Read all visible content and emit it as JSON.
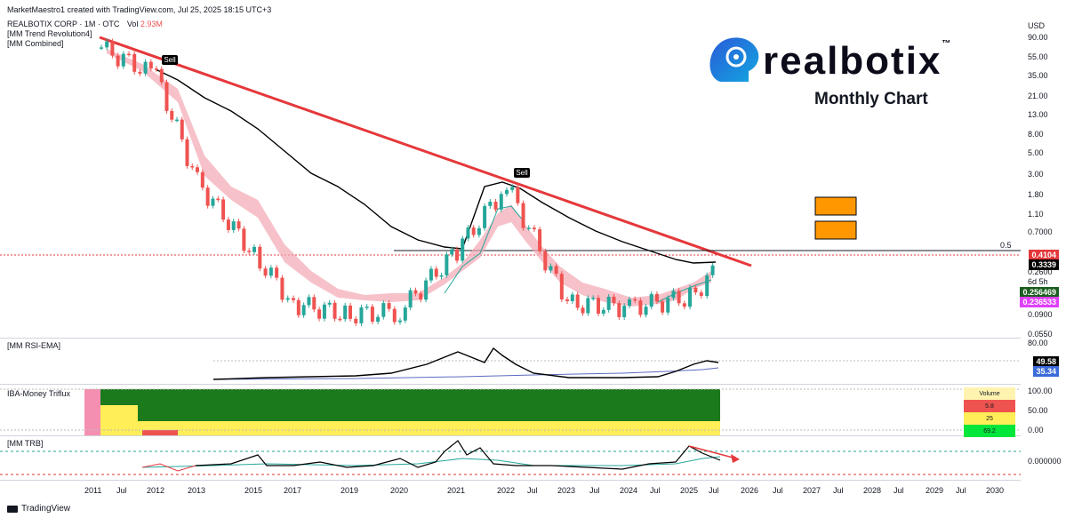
{
  "header": {
    "creator": "MarketMaestro1 created with TradingView.com, Jul 25, 2025 18:15 UTC+3",
    "symbol": "REALBOTIX CORP · 1M · OTC",
    "vol_label": "Vol",
    "vol_value": "2.93M",
    "indicator1": "[MM Trend Revolution4]",
    "indicator2": "[MM Combined]"
  },
  "logo": {
    "text": "realbotix",
    "tm": "™",
    "subtitle": "Monthly Chart"
  },
  "signals": [
    "Sell",
    "Sell"
  ],
  "price_axis": {
    "currency": "USD",
    "ticks": [
      "90.00",
      "55.00",
      "35.00",
      "21.00",
      "13.00",
      "8.00",
      "5.00",
      "3.00",
      "1.80",
      "1.10",
      "0.7000",
      "0.2600",
      "0.0900",
      "0.0550"
    ],
    "fib_label": "0.5",
    "tags": {
      "price1": "0.4104",
      "price2": "0.3339",
      "time": "6d 5h",
      "price3": "0.256469",
      "price4": "0.236533"
    }
  },
  "rsi_pane": {
    "title": "[MM RSI-EMA]",
    "axis_top": "80.00",
    "tags": [
      "49.58",
      "35.34"
    ]
  },
  "money_pane": {
    "title": "IBA-Money Triflux",
    "axis": [
      "100.00",
      "50.00",
      "0.00"
    ],
    "table": [
      {
        "label": "Volume",
        "value": "",
        "color": "#fff3b0"
      },
      {
        "label": "5.8",
        "value": "",
        "color": "#ef5350"
      },
      {
        "label": "25",
        "value": "",
        "color": "#ffee58"
      },
      {
        "label": "69.2",
        "value": "",
        "color": "#00e63a"
      }
    ]
  },
  "trb_pane": {
    "title": "[MM TRB]",
    "axis": "0.000000"
  },
  "time_axis": [
    "2011",
    "Jul",
    "2012",
    "2013",
    "2015",
    "2017",
    "2019",
    "2020",
    "2021",
    "2022",
    "Jul",
    "2023",
    "Jul",
    "2024",
    "Jul",
    "2025",
    "Jul",
    "2026",
    "Jul",
    "2027",
    "Jul",
    "2028",
    "Jul",
    "2029",
    "Jul",
    "2030"
  ],
  "footer": {
    "brand": "TradingView"
  },
  "colors": {
    "trendline": "#e5383b",
    "up": "#26a69a",
    "down": "#ef5350",
    "ma": "#000000",
    "ribbon": "#f3a6b4",
    "box": "#ff9800"
  },
  "chart_data": {
    "type": "line",
    "title": "",
    "scale": "log",
    "ylim": [
      0.055,
      90
    ],
    "series": [
      {
        "name": "",
        "x": [
          "2011",
          "2012",
          "2013",
          "2015",
          "2017",
          "2019",
          "2020",
          "2021",
          "2022",
          "2023",
          "2024",
          "2025",
          "Jul 2025"
        ],
        "values": [
          70,
          35,
          2.5,
          0.4,
          0.12,
          0.09,
          0.1,
          0.45,
          2.3,
          0.12,
          0.11,
          0.14,
          0.29
        ]
      }
    ]
  }
}
